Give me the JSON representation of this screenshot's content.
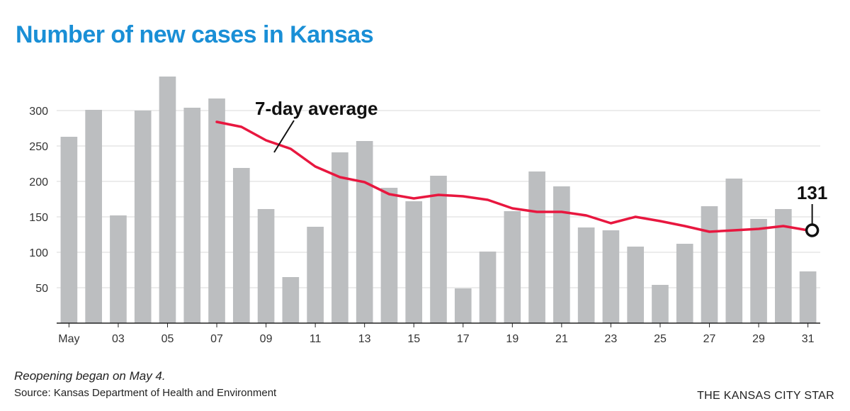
{
  "colors": {
    "title": "#1a8fd6",
    "bar": "#bcbec0",
    "line": "#e8173f",
    "grid": "#d9d9d9",
    "axis": "#222222"
  },
  "chart_data": {
    "type": "bar",
    "title": "Number of new cases in Kansas",
    "x_tick_labels": [
      "May",
      "03",
      "05",
      "07",
      "09",
      "11",
      "13",
      "15",
      "17",
      "19",
      "21",
      "23",
      "25",
      "27",
      "29",
      "31"
    ],
    "y_ticks": [
      50,
      100,
      150,
      200,
      250,
      300
    ],
    "ylim": [
      0,
      350
    ],
    "grid": true,
    "series": [
      {
        "type": "bar",
        "x": [
          1,
          2,
          3,
          4,
          5,
          6,
          7,
          8,
          9,
          10,
          11,
          12,
          13,
          14,
          15,
          16,
          17,
          18,
          19,
          20,
          21,
          22,
          23,
          24,
          25,
          26,
          27,
          28,
          29,
          30,
          31
        ],
        "values": [
          263,
          301,
          152,
          300,
          348,
          304,
          317,
          219,
          161,
          65,
          136,
          241,
          257,
          191,
          172,
          208,
          49,
          101,
          158,
          214,
          193,
          135,
          131,
          108,
          54,
          112,
          165,
          204,
          147,
          161,
          73
        ]
      },
      {
        "name": "7-day average",
        "type": "line",
        "x": [
          7,
          8,
          9,
          10,
          11,
          12,
          13,
          14,
          15,
          16,
          17,
          18,
          19,
          20,
          21,
          22,
          23,
          24,
          25,
          26,
          27,
          28,
          29,
          30,
          31
        ],
        "values": [
          284,
          277,
          258,
          246,
          221,
          206,
          199,
          182,
          176,
          181,
          179,
          174,
          162,
          157,
          157,
          152,
          141,
          150,
          144,
          137,
          129,
          131,
          133,
          137,
          131
        ]
      }
    ],
    "annotations": {
      "line_label": "7-day average",
      "end_value": "131"
    },
    "note": "Reopening began on May 4.",
    "source": "Source: Kansas Department of Health and Environment",
    "brand": "THE KANSAS CITY STAR"
  }
}
